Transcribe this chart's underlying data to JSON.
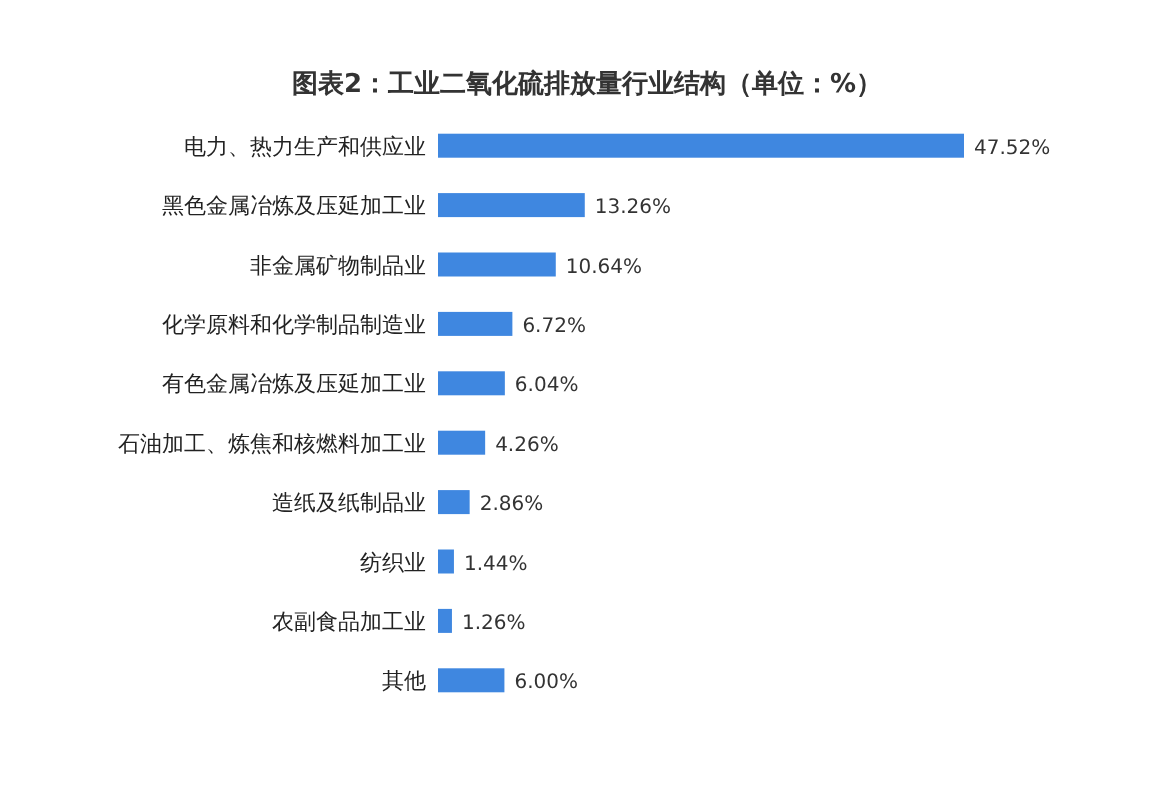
{
  "chart_data": {
    "type": "bar",
    "orientation": "horizontal",
    "title": "图表2：工业二氧化硫排放量行业结构（单位：%）",
    "categories": [
      "电力、热力生产和供应业",
      "黑色金属冶炼及压延加工业",
      "非金属矿物制品业",
      "化学原料和化学制品制造业",
      "有色金属冶炼及压延加工业",
      "石油加工、炼焦和核燃料加工业",
      "造纸及纸制品业",
      "纺织业",
      "农副食品加工业",
      "其他"
    ],
    "values": [
      47.52,
      13.26,
      10.64,
      6.72,
      6.04,
      4.26,
      2.86,
      1.44,
      1.26,
      6.0
    ],
    "value_labels": [
      "47.52%",
      "13.26%",
      "10.64%",
      "6.72%",
      "6.04%",
      "4.26%",
      "2.86%",
      "1.44%",
      "1.26%",
      "6.00%"
    ],
    "color": "#3f87e0"
  }
}
